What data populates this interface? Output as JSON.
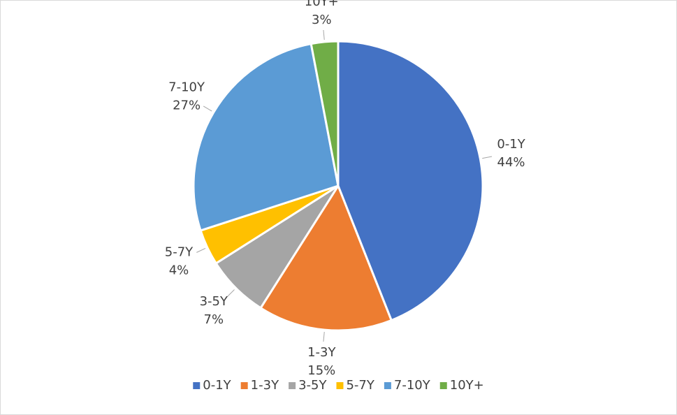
{
  "chart_data": {
    "type": "pie",
    "categories": [
      "0-1Y",
      "1-3Y",
      "3-5Y",
      "5-7Y",
      "7-10Y",
      "10Y+"
    ],
    "values": [
      44,
      15,
      7,
      4,
      27,
      3
    ],
    "value_labels": [
      "44%",
      "15%",
      "7%",
      "4%",
      "27%",
      "3%"
    ],
    "colors": [
      "#4472c4",
      "#ed7d31",
      "#a5a5a5",
      "#ffc000",
      "#5b9bd5",
      "#70ad47"
    ],
    "legend": "bottom"
  }
}
